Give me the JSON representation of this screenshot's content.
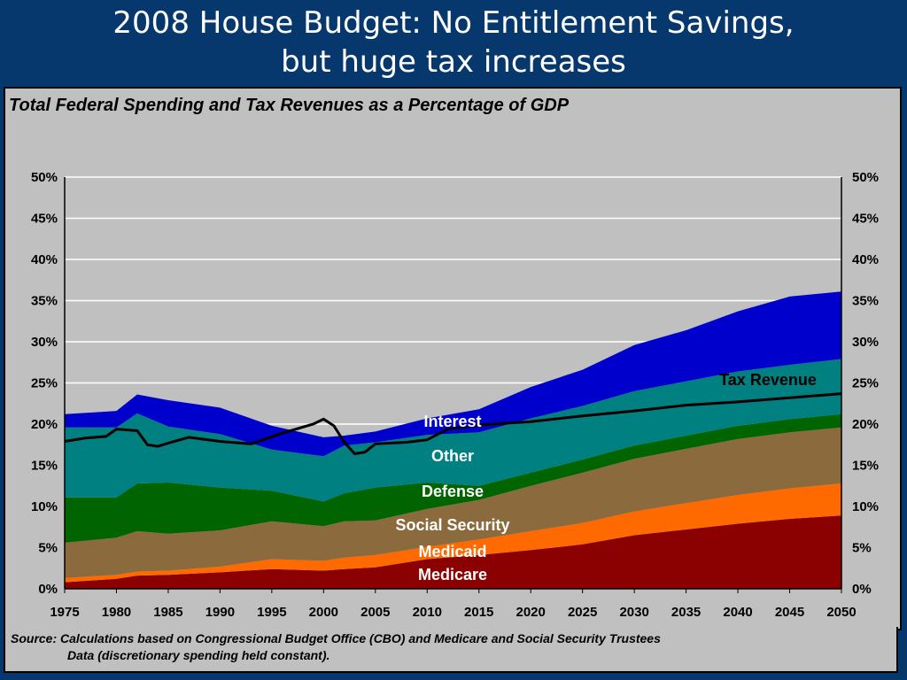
{
  "slide": {
    "title_line1": "2008 House Budget: No Entitlement Savings,",
    "title_line2": "but huge tax increases"
  },
  "source_note": {
    "line1": "Source: Calculations based on Congressional Budget Office (CBO) and Medicare and Social Security Trustees",
    "line2": "Data (discretionary spending held constant)."
  },
  "chart_data": {
    "type": "area",
    "title": "Total Federal Spending and Tax Revenues as a Percentage of GDP",
    "stacked": true,
    "x": [
      1975,
      1980,
      1982,
      1985,
      1990,
      1995,
      2000,
      2002,
      2005,
      2010,
      2015,
      2020,
      2025,
      2030,
      2035,
      2040,
      2045,
      2050
    ],
    "x_ticks": [
      "1975",
      "1980",
      "1985",
      "1990",
      "1995",
      "2000",
      "2005",
      "2010",
      "2015",
      "2020",
      "2025",
      "2030",
      "2035",
      "2040",
      "2045",
      "2050"
    ],
    "y_ticks": [
      "0%",
      "5%",
      "10%",
      "15%",
      "20%",
      "25%",
      "30%",
      "35%",
      "40%",
      "45%",
      "50%"
    ],
    "ylim": [
      0,
      50
    ],
    "grid": true,
    "series": [
      {
        "name": "Medicare",
        "color": "#8b0000",
        "values": [
          0.8,
          1.2,
          1.6,
          1.7,
          2.0,
          2.4,
          2.2,
          2.4,
          2.6,
          3.6,
          4.1,
          4.7,
          5.4,
          6.5,
          7.2,
          7.9,
          8.5,
          8.9
        ]
      },
      {
        "name": "Medicaid",
        "color": "#ff6a00",
        "values": [
          0.5,
          0.5,
          0.5,
          0.5,
          0.7,
          1.2,
          1.2,
          1.4,
          1.5,
          1.5,
          1.9,
          2.3,
          2.6,
          2.9,
          3.2,
          3.5,
          3.7,
          3.9
        ]
      },
      {
        "name": "Social Security",
        "color": "#8b6b3d",
        "values": [
          4.3,
          4.5,
          4.9,
          4.5,
          4.4,
          4.6,
          4.2,
          4.4,
          4.2,
          4.6,
          4.8,
          5.5,
          6.1,
          6.4,
          6.6,
          6.8,
          6.8,
          6.8
        ]
      },
      {
        "name": "Defense",
        "color": "#006400",
        "values": [
          5.5,
          4.9,
          5.8,
          6.2,
          5.2,
          3.7,
          3.0,
          3.4,
          4.0,
          3.2,
          1.7,
          1.6,
          1.6,
          1.6,
          1.6,
          1.6,
          1.6,
          1.6
        ]
      },
      {
        "name": "Other",
        "color": "#008080",
        "values": [
          8.5,
          8.5,
          8.5,
          6.8,
          6.5,
          5.0,
          5.5,
          5.8,
          5.5,
          5.8,
          6.5,
          6.6,
          6.5,
          6.6,
          6.6,
          6.6,
          6.6,
          6.7
        ]
      },
      {
        "name": "Interest",
        "color": "#0000cc",
        "values": [
          1.6,
          2.0,
          2.3,
          3.2,
          3.2,
          2.9,
          2.3,
          1.2,
          1.3,
          2.0,
          2.8,
          3.8,
          4.4,
          5.6,
          6.2,
          7.3,
          8.3,
          8.2
        ]
      }
    ],
    "tax_revenue": {
      "name": "Tax Revenue",
      "color": "#000000",
      "x": [
        1975,
        1977,
        1979,
        1980,
        1982,
        1983,
        1984,
        1985,
        1987,
        1990,
        1993,
        1996,
        1999,
        2000,
        2001,
        2002,
        2003,
        2004,
        2005,
        2008,
        2010,
        2012,
        2015,
        2020,
        2025,
        2030,
        2035,
        2040,
        2045,
        2050
      ],
      "values": [
        17.9,
        18.3,
        18.5,
        19.4,
        19.2,
        17.5,
        17.3,
        17.7,
        18.4,
        17.9,
        17.6,
        18.9,
        20.0,
        20.6,
        19.8,
        17.8,
        16.4,
        16.6,
        17.6,
        17.8,
        18.1,
        19.4,
        19.9,
        20.3,
        21.0,
        21.6,
        22.3,
        22.7,
        23.2,
        23.7
      ]
    },
    "category_labels": [
      "Interest",
      "Other",
      "Defense",
      "Social Security",
      "Medicaid",
      "Medicare"
    ],
    "series_label": "Tax Revenue"
  }
}
